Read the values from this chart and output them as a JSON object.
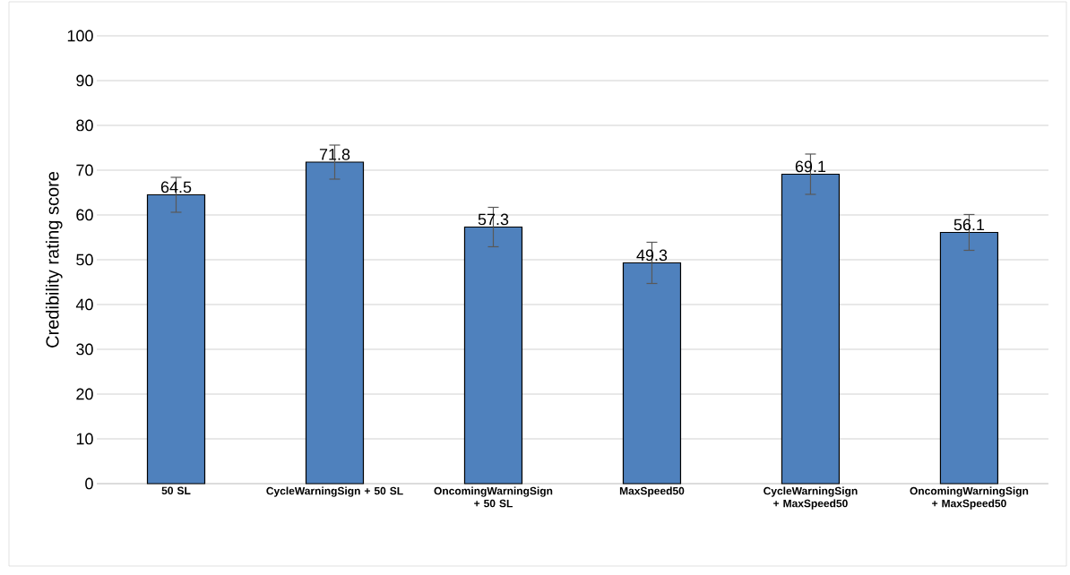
{
  "chart_data": {
    "type": "bar",
    "ylabel": "Credibility rating score",
    "categories": [
      "50 SL",
      "CycleWarningSign + 50 SL",
      "OncomingWarningSign + 50 SL",
      "MaxSpeed50",
      "CycleWarningSign + MaxSpeed50",
      "OncomingWarningSign + MaxSpeed50"
    ],
    "values": [
      64.5,
      71.8,
      57.3,
      49.3,
      69.1,
      56.1
    ],
    "errors": [
      3.9,
      3.8,
      4.4,
      4.6,
      4.5,
      4.0
    ],
    "color": "#4f81bd",
    "ylim": [
      0,
      100
    ],
    "yticks": [
      0,
      10,
      20,
      30,
      40,
      50,
      60,
      70,
      80,
      90,
      100
    ],
    "grid": "y",
    "data_labels": true
  }
}
